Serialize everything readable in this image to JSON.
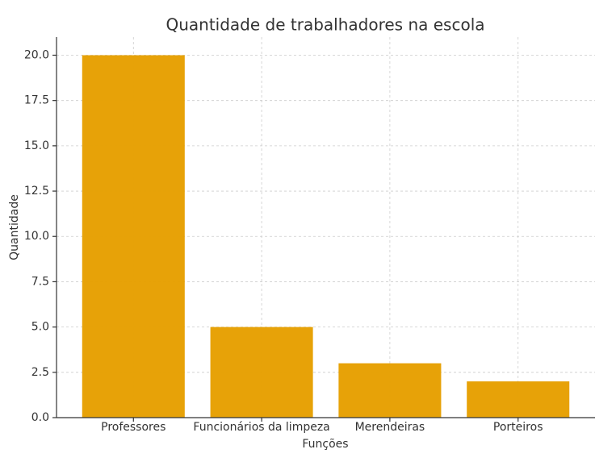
{
  "chart_data": {
    "type": "bar",
    "title": "Quantidade de trabalhadores na escola",
    "x_label": "Funções",
    "y_label": "Quantidade",
    "categories": [
      "Professores",
      "Funcionários da limpeza",
      "Merendeiras",
      "Porteiros"
    ],
    "values": [
      20,
      5,
      3,
      2
    ],
    "color": "#e69f00",
    "ylim": [
      0,
      21
    ],
    "yticks": [
      {
        "value": 0,
        "label": "0.0"
      },
      2.5,
      {
        "value": 5,
        "label": "5.0"
      },
      7.5,
      {
        "value": 10,
        "label": "10.0"
      },
      12.5,
      {
        "value": 15,
        "label": "15.0"
      },
      17.5,
      {
        "value": 20,
        "label": "20.0"
      }
    ],
    "grid": true
  }
}
